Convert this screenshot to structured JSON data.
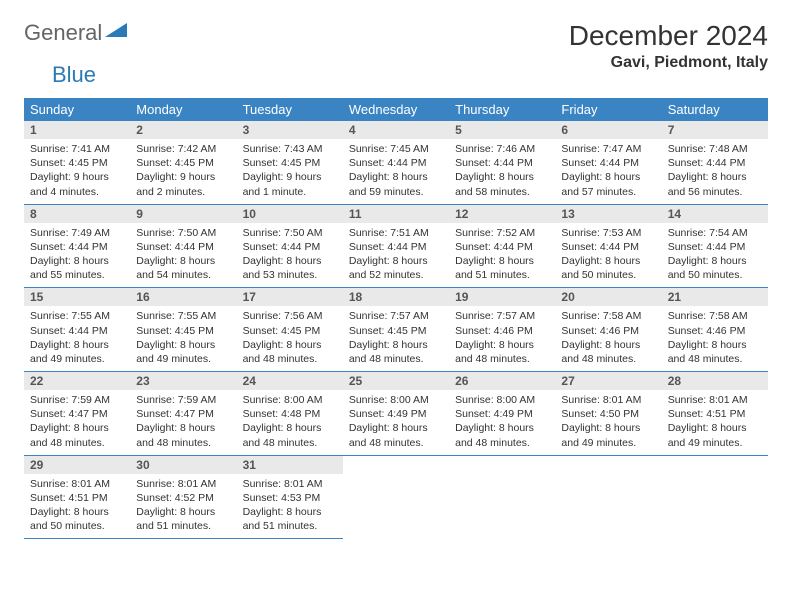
{
  "logo": {
    "word1": "General",
    "word2": "Blue"
  },
  "title": "December 2024",
  "location": "Gavi, Piedmont, Italy",
  "colors": {
    "header_bg": "#3b84c4",
    "header_text": "#ffffff",
    "daynum_bg": "#e9e9e9",
    "row_border": "#3b84c4",
    "logo_gray": "#656565",
    "logo_blue": "#2b7ab8"
  },
  "weekdays": [
    "Sunday",
    "Monday",
    "Tuesday",
    "Wednesday",
    "Thursday",
    "Friday",
    "Saturday"
  ],
  "weeks": [
    [
      {
        "n": "1",
        "sunrise": "7:41 AM",
        "sunset": "4:45 PM",
        "daylight": "9 hours and 4 minutes."
      },
      {
        "n": "2",
        "sunrise": "7:42 AM",
        "sunset": "4:45 PM",
        "daylight": "9 hours and 2 minutes."
      },
      {
        "n": "3",
        "sunrise": "7:43 AM",
        "sunset": "4:45 PM",
        "daylight": "9 hours and 1 minute."
      },
      {
        "n": "4",
        "sunrise": "7:45 AM",
        "sunset": "4:44 PM",
        "daylight": "8 hours and 59 minutes."
      },
      {
        "n": "5",
        "sunrise": "7:46 AM",
        "sunset": "4:44 PM",
        "daylight": "8 hours and 58 minutes."
      },
      {
        "n": "6",
        "sunrise": "7:47 AM",
        "sunset": "4:44 PM",
        "daylight": "8 hours and 57 minutes."
      },
      {
        "n": "7",
        "sunrise": "7:48 AM",
        "sunset": "4:44 PM",
        "daylight": "8 hours and 56 minutes."
      }
    ],
    [
      {
        "n": "8",
        "sunrise": "7:49 AM",
        "sunset": "4:44 PM",
        "daylight": "8 hours and 55 minutes."
      },
      {
        "n": "9",
        "sunrise": "7:50 AM",
        "sunset": "4:44 PM",
        "daylight": "8 hours and 54 minutes."
      },
      {
        "n": "10",
        "sunrise": "7:50 AM",
        "sunset": "4:44 PM",
        "daylight": "8 hours and 53 minutes."
      },
      {
        "n": "11",
        "sunrise": "7:51 AM",
        "sunset": "4:44 PM",
        "daylight": "8 hours and 52 minutes."
      },
      {
        "n": "12",
        "sunrise": "7:52 AM",
        "sunset": "4:44 PM",
        "daylight": "8 hours and 51 minutes."
      },
      {
        "n": "13",
        "sunrise": "7:53 AM",
        "sunset": "4:44 PM",
        "daylight": "8 hours and 50 minutes."
      },
      {
        "n": "14",
        "sunrise": "7:54 AM",
        "sunset": "4:44 PM",
        "daylight": "8 hours and 50 minutes."
      }
    ],
    [
      {
        "n": "15",
        "sunrise": "7:55 AM",
        "sunset": "4:44 PM",
        "daylight": "8 hours and 49 minutes."
      },
      {
        "n": "16",
        "sunrise": "7:55 AM",
        "sunset": "4:45 PM",
        "daylight": "8 hours and 49 minutes."
      },
      {
        "n": "17",
        "sunrise": "7:56 AM",
        "sunset": "4:45 PM",
        "daylight": "8 hours and 48 minutes."
      },
      {
        "n": "18",
        "sunrise": "7:57 AM",
        "sunset": "4:45 PM",
        "daylight": "8 hours and 48 minutes."
      },
      {
        "n": "19",
        "sunrise": "7:57 AM",
        "sunset": "4:46 PM",
        "daylight": "8 hours and 48 minutes."
      },
      {
        "n": "20",
        "sunrise": "7:58 AM",
        "sunset": "4:46 PM",
        "daylight": "8 hours and 48 minutes."
      },
      {
        "n": "21",
        "sunrise": "7:58 AM",
        "sunset": "4:46 PM",
        "daylight": "8 hours and 48 minutes."
      }
    ],
    [
      {
        "n": "22",
        "sunrise": "7:59 AM",
        "sunset": "4:47 PM",
        "daylight": "8 hours and 48 minutes."
      },
      {
        "n": "23",
        "sunrise": "7:59 AM",
        "sunset": "4:47 PM",
        "daylight": "8 hours and 48 minutes."
      },
      {
        "n": "24",
        "sunrise": "8:00 AM",
        "sunset": "4:48 PM",
        "daylight": "8 hours and 48 minutes."
      },
      {
        "n": "25",
        "sunrise": "8:00 AM",
        "sunset": "4:49 PM",
        "daylight": "8 hours and 48 minutes."
      },
      {
        "n": "26",
        "sunrise": "8:00 AM",
        "sunset": "4:49 PM",
        "daylight": "8 hours and 48 minutes."
      },
      {
        "n": "27",
        "sunrise": "8:01 AM",
        "sunset": "4:50 PM",
        "daylight": "8 hours and 49 minutes."
      },
      {
        "n": "28",
        "sunrise": "8:01 AM",
        "sunset": "4:51 PM",
        "daylight": "8 hours and 49 minutes."
      }
    ],
    [
      {
        "n": "29",
        "sunrise": "8:01 AM",
        "sunset": "4:51 PM",
        "daylight": "8 hours and 50 minutes."
      },
      {
        "n": "30",
        "sunrise": "8:01 AM",
        "sunset": "4:52 PM",
        "daylight": "8 hours and 51 minutes."
      },
      {
        "n": "31",
        "sunrise": "8:01 AM",
        "sunset": "4:53 PM",
        "daylight": "8 hours and 51 minutes."
      },
      null,
      null,
      null,
      null
    ]
  ],
  "labels": {
    "sunrise": "Sunrise: ",
    "sunset": "Sunset: ",
    "daylight": "Daylight: "
  }
}
